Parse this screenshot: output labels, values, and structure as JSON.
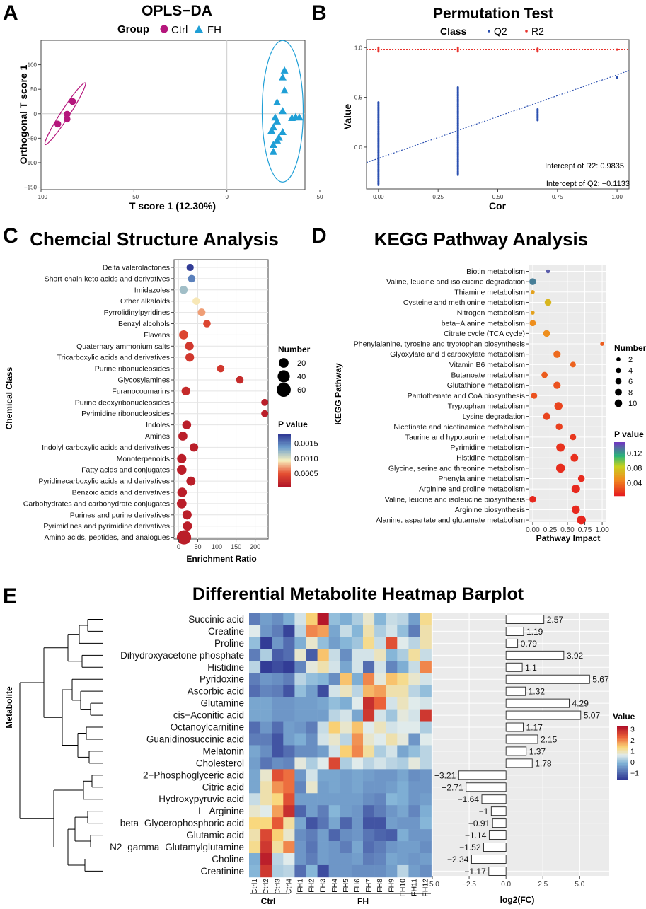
{
  "panels": {
    "A": {
      "letter": "A",
      "title": "OPLS−DA",
      "legend_title": "Group",
      "legend_ctrl": "Ctrl",
      "legend_fh": "FH",
      "xlabel": "T score 1 (12.30%)",
      "ylabel": "Orthogonal T score 1",
      "xticks": [
        "−100",
        "−50",
        "0",
        "50"
      ],
      "yticks": [
        "100",
        "50",
        "0",
        "−50",
        "−100",
        "−150"
      ]
    },
    "B": {
      "letter": "B",
      "title": "Permutation Test",
      "legend_title": "Class",
      "legend_q2": "Q2",
      "legend_r2": "R2",
      "xlabel": "Cor",
      "ylabel": "Value",
      "xticks": [
        "0.00",
        "0.25",
        "0.50",
        "0.75",
        "1.00"
      ],
      "yticks": [
        "1.0",
        "0.5",
        "0.0"
      ],
      "ann_r2": "Intercept of R2: 0.9835",
      "ann_q2": "Intercept of Q2: −0.1133"
    },
    "C": {
      "letter": "C",
      "title": "Chemcial Structure Analysis",
      "xlabel": "Enrichment Ratio",
      "ylabel": "Chemical Class",
      "xticks": [
        "0",
        "50",
        "100",
        "150",
        "200"
      ],
      "size_title": "Number",
      "size_labels": [
        "20",
        "40",
        "60"
      ],
      "color_title": "P value",
      "color_labels": [
        "0.0015",
        "0.0010",
        "0.0005"
      ]
    },
    "D": {
      "letter": "D",
      "title": "KEGG Pathway Analysis",
      "xlabel": "Pathway Impact",
      "ylabel": "KEGG Pathway",
      "xticks": [
        "0.00",
        "0.25",
        "0.50",
        "0.75",
        "1.00"
      ],
      "size_title": "Number",
      "size_labels": [
        "2",
        "4",
        "6",
        "8",
        "10"
      ],
      "color_title": "P value",
      "color_labels": [
        "0.12",
        "0.08",
        "0.04"
      ]
    },
    "E": {
      "letter": "E",
      "title": "Differential Metabolite Heatmap Barplot",
      "ylabel": "Metabolite",
      "xlabel": "log2(FC)",
      "xticks": [
        "−5.0",
        "−2.5",
        "0.0",
        "2.5",
        "5.0"
      ],
      "group_ctrl": "Ctrl",
      "group_fh": "FH",
      "color_title": "Value",
      "color_labels": [
        "3",
        "2",
        "1",
        "0",
        "−1"
      ]
    }
  },
  "chart_data": [
    {
      "type": "scatter",
      "id": "A",
      "title": "OPLS−DA",
      "xlabel": "T score 1 (12.30%)",
      "ylabel": "Orthogonal T score 1",
      "xlim": [
        -100,
        42
      ],
      "ylim": [
        -155,
        150
      ],
      "series": [
        {
          "name": "Ctrl",
          "color": "#b5167c",
          "marker": "circle",
          "points": [
            [
              -83,
              25
            ],
            [
              -86,
              -1
            ],
            [
              -86,
              -11
            ],
            [
              -91,
              -21
            ]
          ]
        },
        {
          "name": "FH",
          "color": "#1f9fd6",
          "marker": "triangle",
          "points": [
            [
              31,
              88
            ],
            [
              30,
              74
            ],
            [
              31,
              47
            ],
            [
              27,
              23
            ],
            [
              30,
              5
            ],
            [
              26,
              -8
            ],
            [
              27,
              -16
            ],
            [
              25,
              -28
            ],
            [
              24,
              -35
            ],
            [
              30,
              -38
            ],
            [
              28,
              -49
            ],
            [
              27,
              -55
            ],
            [
              25,
              -64
            ],
            [
              25,
              -78
            ],
            [
              37,
              -7
            ],
            [
              39,
              -8
            ],
            [
              35,
              -9
            ]
          ]
        }
      ],
      "ellipses": [
        {
          "group": "Ctrl",
          "center": [
            -87,
            0
          ],
          "radius_x": 7,
          "radius_y": 70,
          "angle_deg": -33
        },
        {
          "group": "FH",
          "center": [
            30,
            5
          ],
          "radius_x": 17,
          "radius_y": 135,
          "angle_deg": 0
        }
      ]
    },
    {
      "type": "scatter",
      "id": "B",
      "title": "Permutation Test",
      "xlabel": "Cor",
      "ylabel": "Value",
      "xlim": [
        -0.05,
        1.05
      ],
      "ylim": [
        -0.42,
        1.08
      ],
      "series": [
        {
          "name": "Q2",
          "color": "#2a4fb0",
          "clusters": [
            {
              "x": 0.0,
              "y_min": -0.38,
              "y_max": 0.45
            },
            {
              "x": 0.333,
              "y_min": -0.28,
              "y_max": 0.6
            },
            {
              "x": 0.667,
              "y_min": 0.27,
              "y_max": 0.38
            },
            {
              "x": 1.0,
              "y_min": 0.7,
              "y_max": 0.7
            }
          ],
          "intercept": -0.1133,
          "slope": 0.84
        },
        {
          "name": "R2",
          "color": "#e8332d",
          "clusters": [
            {
              "x": 0.0,
              "y_min": 0.96,
              "y_max": 1.0
            },
            {
              "x": 0.333,
              "y_min": 0.96,
              "y_max": 1.0
            },
            {
              "x": 0.667,
              "y_min": 0.96,
              "y_max": 0.99
            },
            {
              "x": 1.0,
              "y_min": 0.98,
              "y_max": 0.98
            }
          ],
          "intercept": 0.9835,
          "slope": 0.0
        }
      ],
      "annotations": [
        "Intercept of R2: 0.9835",
        "Intercept of Q2: −0.1133"
      ]
    },
    {
      "type": "scatter",
      "id": "C",
      "title": "Chemcial Structure Analysis",
      "xlabel": "Enrichment Ratio",
      "ylabel": "Chemical Class",
      "xlim": [
        -12,
        234
      ],
      "categories": [
        "Delta valerolactones",
        "Short-chain keto acids and derivatives",
        "Imidazoles",
        "Other alkaloids",
        "Pyrrolidinylpyridines",
        "Benzyl alcohols",
        "Flavans",
        "Quaternary ammonium salts",
        "Tricarboxylic acids and derivatives",
        "Purine ribonucleosides",
        "Glycosylamines",
        "Furanocoumarins",
        "Purine deoxyribonucleosides",
        "Pyrimidine ribonucleosides",
        "Indoles",
        "Amines",
        "Indolyl carboxylic acids and derivatives",
        "Monoterpenoids",
        "Fatty acids and conjugates",
        "Pyridinecarboxylic acids and derivatives",
        "Benzoic acids and derivatives",
        "Carbohydrates and carbohydrate conjugates",
        "Purines and purine derivatives",
        "Pyrimidines and pyrimidine derivatives",
        "Amino acids, peptides, and analogues"
      ],
      "enrichment_ratio": [
        30,
        34,
        13,
        46,
        60,
        74,
        13,
        28,
        29,
        110,
        160,
        19,
        225,
        225,
        21,
        11,
        40,
        8,
        8,
        32,
        9,
        8,
        22,
        23,
        14
      ],
      "number": [
        7,
        8,
        11,
        8,
        9,
        8,
        16,
        14,
        14,
        8,
        8,
        14,
        6,
        6,
        15,
        16,
        13,
        17,
        19,
        16,
        19,
        20,
        17,
        17,
        62
      ],
      "p_value": [
        0.0018,
        0.0015,
        0.0012,
        0.0009,
        0.0007,
        0.0004,
        0.0004,
        0.0003,
        0.0003,
        0.0003,
        0.0002,
        0.0002,
        0.0001,
        0.0001,
        0.0001,
        0.0001,
        0.0001,
        0.0001,
        0.0001,
        0.0001,
        0.0001,
        0.0001,
        0.0001,
        0.0001,
        0.0001
      ],
      "color_range": [
        5e-05,
        0.0018
      ]
    },
    {
      "type": "scatter",
      "id": "D",
      "title": "KEGG Pathway Analysis",
      "xlabel": "Pathway Impact",
      "ylabel": "KEGG Pathway",
      "xlim": [
        -0.05,
        1.05
      ],
      "categories": [
        "Biotin metabolism",
        "Valine, leucine and isoleucine degradation",
        "Thiamine metabolism",
        "Cysteine and methionine metabolism",
        "Nitrogen metabolism",
        "beta−Alanine metabolism",
        "Citrate cycle (TCA cycle)",
        "Phenylalanine, tyrosine and tryptophan biosynthesis",
        "Glyoxylate and dicarboxylate metabolism",
        "Vitamin B6 metabolism",
        "Butanoate metabolism",
        "Glutathione metabolism",
        "Pantothenate and CoA biosynthesis",
        "Tryptophan metabolism",
        "Lysine degradation",
        "Nicotinate and nicotinamide metabolism",
        "Taurine and hypotaurine metabolism",
        "Pyrimidine metabolism",
        "Histidine metabolism",
        "Glycine, serine and threonine metabolism",
        "Phenylalanine metabolism",
        "Arginine and proline metabolism",
        "Valine, leucine and isoleucine biosynthesis",
        "Arginine biosynthesis",
        "Alanine, aspartate and glutamate metabolism"
      ],
      "impact": [
        0.22,
        0.0,
        0.0,
        0.22,
        0.0,
        0.0,
        0.2,
        1.0,
        0.35,
        0.58,
        0.17,
        0.35,
        0.02,
        0.37,
        0.2,
        0.38,
        0.58,
        0.4,
        0.6,
        0.4,
        0.7,
        0.62,
        0.0,
        0.62,
        0.7
      ],
      "number": [
        1,
        5,
        1,
        5,
        1,
        4,
        5,
        1,
        6,
        3,
        4,
        6,
        4,
        8,
        6,
        5,
        4,
        9,
        7,
        10,
        5,
        9,
        5,
        8,
        10
      ],
      "p_value": [
        0.14,
        0.13,
        0.06,
        0.07,
        0.06,
        0.05,
        0.05,
        0.03,
        0.035,
        0.032,
        0.03,
        0.025,
        0.025,
        0.02,
        0.02,
        0.018,
        0.015,
        0.013,
        0.012,
        0.011,
        0.01,
        0.009,
        0.009,
        0.009,
        0.008
      ],
      "color_range": [
        0.005,
        0.15
      ]
    },
    {
      "type": "heatmap",
      "id": "E-heatmap",
      "title": "Differential Metabolite Heatmap Barplot",
      "ylabel": "Metabolite",
      "rows": [
        "Succinic acid",
        "Creatine",
        "Proline",
        "Dihydroxyacetone phosphate",
        "Histidine",
        "Pyridoxine",
        "Ascorbic acid",
        "Glutamine",
        "cis−Aconitic acid",
        "Octanoylcarnitine",
        "Guanidinosuccinic acid",
        "Melatonin",
        "Cholesterol",
        "2−Phosphoglyceric acid",
        "Citric acid",
        "Hydroxypyruvic acid",
        "L−Arginine",
        "beta−Glycerophosphoric acid",
        "Glutamic acid",
        "N2−gamma−Glutamylglutamine",
        "Choline",
        "Creatinine"
      ],
      "columns": [
        "Ctrl1",
        "Ctrl2",
        "Ctrl3",
        "Ctrl4",
        "FH1",
        "FH2",
        "FH3",
        "FH4",
        "FH5",
        "FH6",
        "FH7",
        "FH8",
        "FH9",
        "FH10",
        "FH11",
        "FH12"
      ],
      "groups": [
        {
          "name": "Ctrl",
          "columns": [
            0,
            3
          ]
        },
        {
          "name": "FH",
          "columns": [
            4,
            15
          ]
        }
      ],
      "values": [
        [
          -0.8,
          -0.4,
          -0.6,
          -0.2,
          0.5,
          1.4,
          3.2,
          0.0,
          -0.2,
          0.2,
          0.8,
          -0.1,
          0.4,
          0.3,
          -0.4,
          1.2
        ],
        [
          0.6,
          -0.5,
          -0.8,
          -1.5,
          0.3,
          2.0,
          1.8,
          -0.3,
          0.4,
          -0.1,
          1.0,
          0.2,
          0.5,
          0.0,
          -0.8,
          1.0
        ],
        [
          0.0,
          -1.6,
          -0.5,
          -1.0,
          -0.2,
          0.8,
          0.0,
          -0.4,
          -0.1,
          0.1,
          1.2,
          0.4,
          2.5,
          0.6,
          0.3,
          1.0
        ],
        [
          -0.8,
          0.2,
          -1.2,
          -1.0,
          0.8,
          -1.2,
          1.5,
          0.4,
          -0.6,
          0.5,
          0.5,
          0.9,
          -0.1,
          0.2,
          1.1,
          0.4
        ],
        [
          0.3,
          -1.6,
          -1.4,
          -1.6,
          -0.7,
          0.7,
          1.0,
          0.5,
          -0.3,
          0.5,
          -1.0,
          0.5,
          -0.7,
          -0.2,
          0.4,
          2.0
        ],
        [
          -0.8,
          -0.5,
          -0.6,
          -0.8,
          0.3,
          0.0,
          -0.1,
          -0.6,
          1.5,
          -0.2,
          2.0,
          0.7,
          1.5,
          1.2,
          0.8,
          0.5
        ],
        [
          -1.0,
          -0.7,
          -0.8,
          -1.3,
          0.0,
          -0.4,
          -1.4,
          0.5,
          0.9,
          0.3,
          1.6,
          1.8,
          1.0,
          1.0,
          0.3,
          0.0
        ],
        [
          -0.3,
          -0.3,
          -0.5,
          -0.5,
          -0.4,
          -0.4,
          -0.3,
          0.0,
          -0.2,
          0.6,
          2.9,
          2.3,
          0.5,
          0.9,
          0.6,
          0.5
        ],
        [
          -0.3,
          -0.3,
          -0.5,
          -0.5,
          -0.4,
          -0.4,
          -0.4,
          0.3,
          0.5,
          -0.3,
          2.8,
          0.5,
          0.1,
          0.7,
          0.5,
          2.8
        ],
        [
          -1.0,
          -0.5,
          -1.0,
          -0.4,
          -0.5,
          -0.8,
          0.4,
          1.4,
          0.8,
          1.5,
          0.6,
          0.9,
          0.5,
          0.6,
          0.6,
          0.2
        ],
        [
          -0.8,
          -0.8,
          -1.3,
          -0.4,
          -0.2,
          -0.6,
          0.5,
          0.8,
          0.3,
          1.9,
          0.8,
          0.6,
          1.0,
          0.7,
          -0.5,
          0.6
        ],
        [
          -0.3,
          -0.6,
          -1.3,
          -1.0,
          -0.6,
          -0.6,
          -0.4,
          0.5,
          1.4,
          2.0,
          1.1,
          0.2,
          0.5,
          -0.3,
          0.0,
          0.3
        ],
        [
          -0.4,
          -0.9,
          -0.6,
          -0.7,
          0.7,
          0.2,
          0.6,
          2.6,
          0.2,
          0.6,
          0.3,
          0.5,
          0.3,
          0.2,
          0.7,
          0.3
        ],
        [
          -0.3,
          0.8,
          2.5,
          2.2,
          -0.5,
          0.5,
          -0.3,
          -0.3,
          -0.4,
          -0.3,
          -0.4,
          -0.5,
          -0.5,
          -0.3,
          -0.6,
          -0.5
        ],
        [
          -0.3,
          1.0,
          1.9,
          2.2,
          -0.7,
          0.8,
          -0.4,
          -0.3,
          -0.4,
          -0.3,
          -0.5,
          -0.5,
          -0.4,
          -0.2,
          -0.5,
          -0.5
        ],
        [
          0.4,
          1.0,
          1.3,
          2.5,
          -0.4,
          -0.4,
          -0.4,
          -0.4,
          -0.4,
          -0.4,
          -0.6,
          -0.7,
          -0.1,
          -0.2,
          -0.5,
          -0.4
        ],
        [
          0.8,
          0.6,
          1.8,
          2.9,
          -1.1,
          -0.4,
          -0.8,
          -0.1,
          -0.4,
          -0.5,
          -1.1,
          -0.8,
          -0.5,
          -0.3,
          -0.7,
          -0.2
        ],
        [
          1.3,
          1.3,
          2.4,
          1.1,
          -0.3,
          -1.3,
          -0.9,
          -0.3,
          -1.1,
          -0.5,
          -1.3,
          -1.3,
          -0.4,
          -0.5,
          -0.5,
          -0.1
        ],
        [
          1.0,
          2.6,
          1.4,
          0.8,
          -0.6,
          -0.8,
          -0.4,
          -1.1,
          -0.6,
          -0.5,
          -0.9,
          -1.1,
          -1.2,
          -0.2,
          -0.5,
          -0.5
        ],
        [
          1.2,
          2.8,
          1.1,
          2.0,
          -0.5,
          -0.9,
          -0.4,
          -0.5,
          -0.8,
          -0.3,
          -1.0,
          -0.8,
          -0.5,
          -0.4,
          -0.4,
          -0.6
        ],
        [
          -0.2,
          3.1,
          0.3,
          0.6,
          -0.5,
          -0.8,
          -0.4,
          -0.5,
          -0.5,
          -0.4,
          -0.8,
          -0.7,
          -0.3,
          -0.4,
          -0.5,
          -0.4
        ],
        [
          -0.1,
          2.8,
          0.2,
          0.3,
          -1.0,
          -0.1,
          -1.4,
          -0.5,
          -0.5,
          -0.6,
          -0.6,
          -0.6,
          -0.4,
          0.3,
          -0.4,
          -0.6
        ]
      ],
      "color_range": [
        -1.6,
        3.3
      ]
    },
    {
      "type": "bar",
      "id": "E-barplot",
      "orientation": "horizontal",
      "xlabel": "log2(FC)",
      "xlim": [
        -5.0,
        7.0
      ],
      "categories": [
        "Succinic acid",
        "Creatine",
        "Proline",
        "Dihydroxyacetone phosphate",
        "Histidine",
        "Pyridoxine",
        "Ascorbic acid",
        "Glutamine",
        "cis−Aconitic acid",
        "Octanoylcarnitine",
        "Guanidinosuccinic acid",
        "Melatonin",
        "Cholesterol",
        "2−Phosphoglyceric acid",
        "Citric acid",
        "Hydroxypyruvic acid",
        "L−Arginine",
        "beta−Glycerophosphoric acid",
        "Glutamic acid",
        "N2−gamma−Glutamylglutamine",
        "Choline",
        "Creatinine"
      ],
      "values": [
        2.57,
        1.19,
        0.79,
        3.92,
        1.1,
        5.67,
        1.32,
        4.29,
        5.07,
        1.17,
        2.15,
        1.37,
        1.78,
        -3.21,
        -2.71,
        -1.64,
        -1,
        -0.91,
        -1.14,
        -1.52,
        -2.34,
        -1.17
      ],
      "value_labels": [
        "2.57",
        "1.19",
        "0.79",
        "3.92",
        "1.1",
        "5.67",
        "1.32",
        "4.29",
        "5.07",
        "1.17",
        "2.15",
        "1.37",
        "1.78",
        "−3.21",
        "−2.71",
        "−1.64",
        "−1",
        "−0.91",
        "−1.14",
        "−1.52",
        "−2.34",
        "−1.17"
      ]
    }
  ]
}
